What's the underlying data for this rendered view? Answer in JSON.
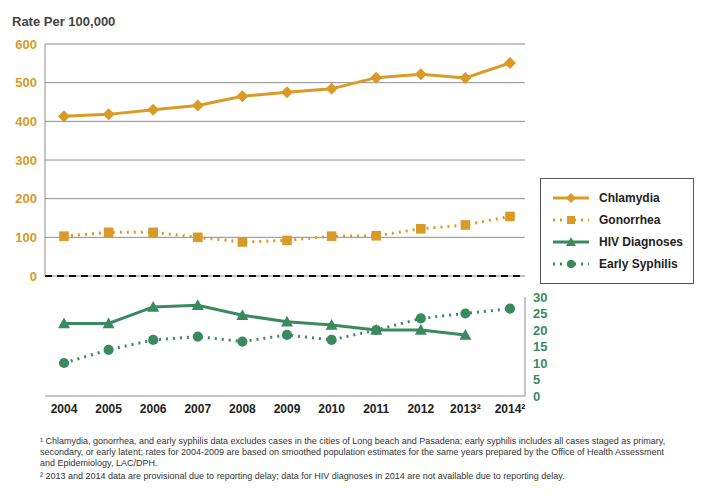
{
  "chart_data": [
    {
      "type": "line",
      "y_label": "Rate Per 100,000",
      "categories": [
        "2004",
        "2005",
        "2006",
        "2007",
        "2008",
        "2009",
        "2010",
        "2011",
        "2012",
        "2013²",
        "2014²"
      ],
      "ylim": [
        0,
        600
      ],
      "yticks": [
        0,
        100,
        200,
        300,
        400,
        500,
        600
      ],
      "grid": true,
      "legend": "right",
      "tick_labels": "y",
      "series": [
        {
          "name": "Chlamydia",
          "color": "#d99a27",
          "marker": "diamond",
          "line_style": "solid",
          "values": [
            413,
            418,
            430,
            441,
            465,
            475,
            484,
            513,
            522,
            512,
            551
          ]
        },
        {
          "name": "Gonorrhea",
          "color": "#d99a27",
          "marker": "square",
          "line_style": "dotted",
          "values": [
            103,
            113,
            113,
            100,
            88,
            92,
            103,
            104,
            122,
            132,
            154
          ]
        }
      ]
    },
    {
      "type": "line",
      "categories": [
        "2004",
        "2005",
        "2006",
        "2007",
        "2008",
        "2009",
        "2010",
        "2011",
        "2012",
        "2013²",
        "2014²"
      ],
      "ylim": [
        0,
        30
      ],
      "yticks": [
        0,
        5,
        10,
        15,
        20,
        25,
        30
      ],
      "grid": false,
      "series": [
        {
          "name": "HIV Diagnoses",
          "color": "#3b8a5f",
          "marker": "triangle",
          "line_style": "solid",
          "values": [
            22,
            22,
            27,
            27.5,
            24.5,
            22.5,
            21.5,
            20,
            20,
            18.5,
            null
          ]
        },
        {
          "name": "Early Syphilis",
          "color": "#3b8a5f",
          "marker": "circle",
          "line_style": "dotted",
          "values": [
            10,
            14,
            17,
            18,
            16.5,
            18.5,
            17,
            20,
            23.5,
            25,
            26.5
          ]
        }
      ],
      "annotations": [
        "¹ Chlamydia, gonorrhea, and early syphilis data excludes cases in the cities of Long beach and Pasadena; early syphilis includes all cases staged as primary, secondary, or early latent; rates for 2004-2009 are based on smoothed population estimates for the same years prepared by the Office of Health Assessment and Epidemiology, LAC/DPH.",
        "² 2013 and 2014 data are provisional due to reporting delay; data for HIV diagnoses in 2014 are not available due to reporting delay."
      ]
    }
  ]
}
